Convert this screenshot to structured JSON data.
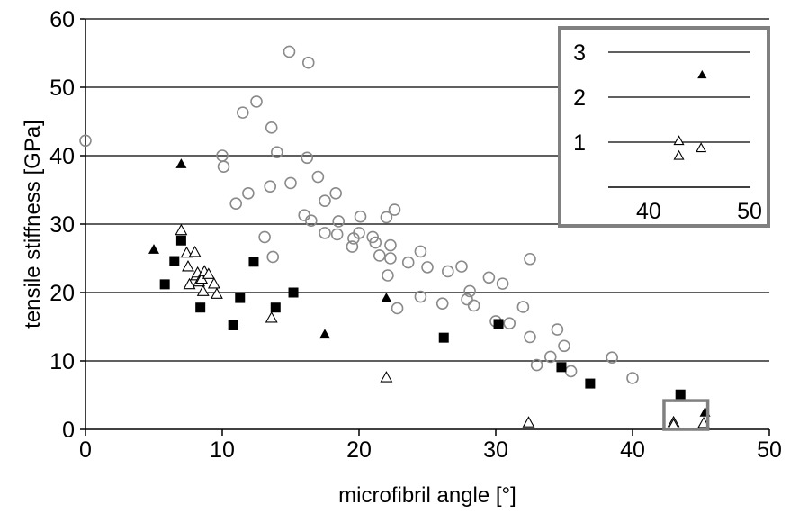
{
  "chart_data": {
    "type": "scatter",
    "xlabel": "microfibril angle [°]",
    "ylabel": "tensile stiffness [GPa]",
    "xlim": [
      0,
      50
    ],
    "ylim": [
      0,
      60
    ],
    "x_ticks": [
      "0",
      "10",
      "20",
      "30",
      "40",
      "50"
    ],
    "y_ticks": [
      "0",
      "10",
      "20",
      "30",
      "40",
      "50",
      "60"
    ],
    "grid": "horizontal",
    "legend": "none",
    "colors": {
      "circle": "#8a8a8a",
      "square": "#000000",
      "filled_triangle": "#000000",
      "open_triangle": "#000000",
      "inset_border": "#808080"
    },
    "series": [
      {
        "marker": "open-circle",
        "points": [
          [
            0,
            42.2
          ],
          [
            10,
            40
          ],
          [
            10.1,
            38.4
          ],
          [
            11.5,
            46.3
          ],
          [
            12.5,
            47.9
          ],
          [
            11,
            33
          ],
          [
            11.9,
            34.5
          ],
          [
            13.1,
            28.1
          ],
          [
            13.5,
            35.5
          ],
          [
            13.6,
            44.1
          ],
          [
            13.7,
            25.2
          ],
          [
            14,
            40.5
          ],
          [
            14.9,
            55.2
          ],
          [
            15,
            36
          ],
          [
            16,
            31.3
          ],
          [
            16.2,
            39.7
          ],
          [
            16.3,
            53.6
          ],
          [
            16.5,
            30.5
          ],
          [
            17,
            36.9
          ],
          [
            17.5,
            33.4
          ],
          [
            17.5,
            28.7
          ],
          [
            18.3,
            34.5
          ],
          [
            18.4,
            28.5
          ],
          [
            18.5,
            30.4
          ],
          [
            19.5,
            26.7
          ],
          [
            19.6,
            27.9
          ],
          [
            20,
            28.7
          ],
          [
            20.1,
            31.1
          ],
          [
            21,
            28.1
          ],
          [
            21.2,
            27.3
          ],
          [
            21.5,
            25.4
          ],
          [
            22,
            31
          ],
          [
            22.1,
            22.5
          ],
          [
            22.3,
            25
          ],
          [
            22.3,
            26.9
          ],
          [
            22.6,
            32.1
          ],
          [
            22.8,
            17.7
          ],
          [
            23.6,
            24.4
          ],
          [
            24.5,
            26
          ],
          [
            24.5,
            19.4
          ],
          [
            25,
            23.7
          ],
          [
            26.1,
            18.4
          ],
          [
            26.5,
            23.1
          ],
          [
            27.5,
            23.8
          ],
          [
            27.9,
            19
          ],
          [
            28.1,
            20.2
          ],
          [
            28.4,
            18.1
          ],
          [
            29.5,
            22.2
          ],
          [
            30,
            15.8
          ],
          [
            30.5,
            21.3
          ],
          [
            31,
            15.5
          ],
          [
            32,
            17.9
          ],
          [
            32.5,
            13.5
          ],
          [
            32.5,
            24.9
          ],
          [
            33,
            9.4
          ],
          [
            34,
            10.6
          ],
          [
            34.5,
            14.6
          ],
          [
            35,
            12.2
          ],
          [
            35.5,
            8.5
          ],
          [
            38.5,
            10.5
          ],
          [
            40,
            7.5
          ]
        ]
      },
      {
        "marker": "filled-square",
        "points": [
          [
            5.8,
            21.2
          ],
          [
            6.5,
            24.6
          ],
          [
            7,
            27.6
          ],
          [
            8.4,
            17.8
          ],
          [
            10.8,
            15.2
          ],
          [
            11.3,
            19.2
          ],
          [
            12.3,
            24.5
          ],
          [
            13.9,
            17.8
          ],
          [
            15.2,
            20
          ],
          [
            26.2,
            13.4
          ],
          [
            30.2,
            15.4
          ],
          [
            34.8,
            9.1
          ],
          [
            36.9,
            6.7
          ],
          [
            43.5,
            5.1
          ]
        ]
      },
      {
        "marker": "filled-triangle",
        "points": [
          [
            5,
            26.3
          ],
          [
            7,
            38.8
          ],
          [
            17.5,
            13.9
          ],
          [
            22,
            19.2
          ],
          [
            45.3,
            2.5
          ]
        ]
      },
      {
        "marker": "open-triangle",
        "points": [
          [
            7,
            29.1
          ],
          [
            7.4,
            25.8
          ],
          [
            7.5,
            23.8
          ],
          [
            7.6,
            21.2
          ],
          [
            8,
            25.9
          ],
          [
            8.1,
            22.5
          ],
          [
            8.2,
            22.9
          ],
          [
            8.3,
            21.6
          ],
          [
            8.5,
            22
          ],
          [
            8.7,
            23.1
          ],
          [
            8.6,
            20.2
          ],
          [
            9,
            22.7
          ],
          [
            9.4,
            21.3
          ],
          [
            9.6,
            19.8
          ],
          [
            13.6,
            16.3
          ],
          [
            22,
            7.6
          ],
          [
            32.4,
            1
          ],
          [
            43,
            1.05
          ],
          [
            43,
            0.7
          ],
          [
            45.2,
            0.9
          ]
        ]
      }
    ],
    "inset": {
      "xlim": [
        36,
        50
      ],
      "ylim": [
        0,
        3.5
      ],
      "x_ticks": [
        "40",
        "50"
      ],
      "y_ticks": [
        "1",
        "2",
        "3"
      ],
      "zoom_box": {
        "xlim": [
          42.3,
          45.5
        ],
        "ylim": [
          0,
          4.2
        ]
      },
      "series": [
        {
          "marker": "filled-triangle",
          "points": [
            [
              45.3,
              2.5
            ]
          ]
        },
        {
          "marker": "open-triangle",
          "points": [
            [
              43,
              1.03
            ],
            [
              43,
              0.7
            ],
            [
              45.2,
              0.87
            ]
          ]
        }
      ]
    }
  }
}
